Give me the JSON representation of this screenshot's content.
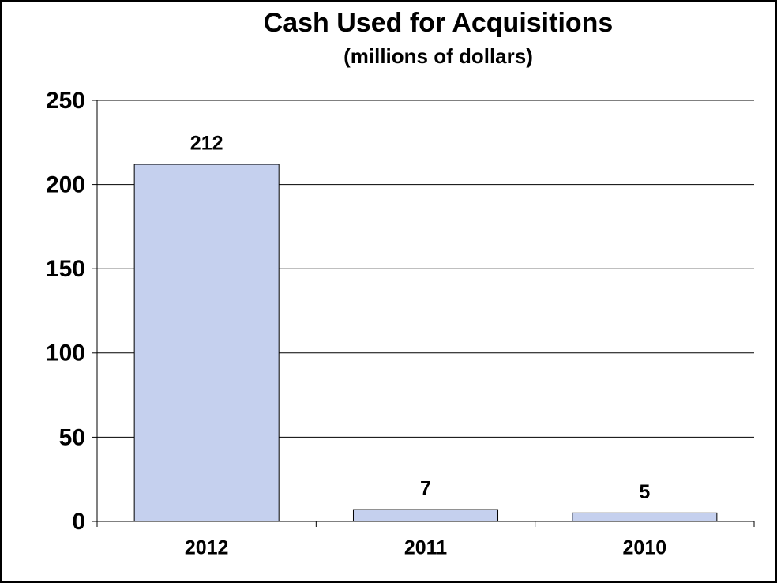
{
  "chart_data": {
    "type": "bar",
    "title": "Cash Used for Acquisitions",
    "subtitle": "(millions of dollars)",
    "categories": [
      "2012",
      "2011",
      "2010"
    ],
    "values": [
      212,
      7,
      5
    ],
    "color": "#c5d0ee",
    "ylim": [
      0,
      250
    ],
    "yticks": [
      0,
      50,
      100,
      150,
      200,
      250
    ],
    "grid": true
  }
}
